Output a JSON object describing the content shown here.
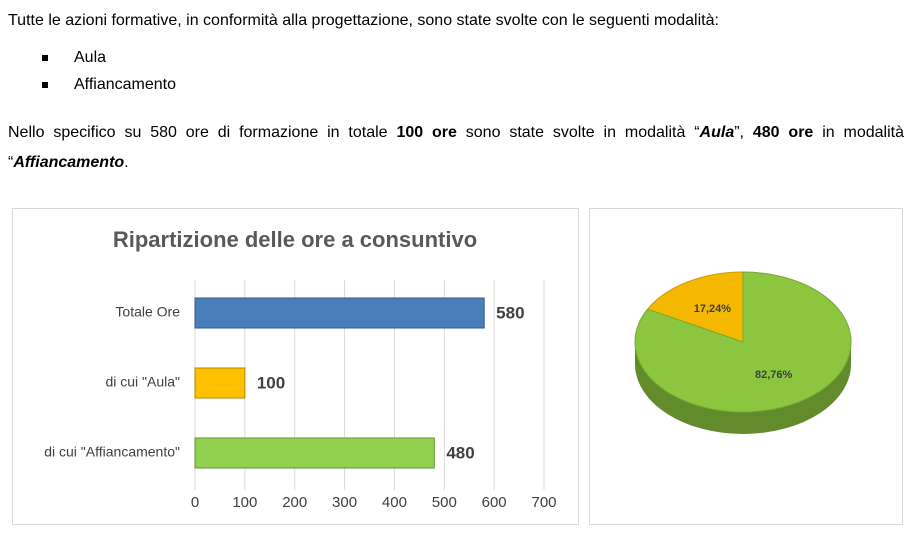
{
  "document": {
    "intro": "Tutte le azioni formative, in conformità alla progettazione, sono state svolte con le seguenti modalità:",
    "bullets": [
      "Aula",
      "Affiancamento"
    ],
    "paragraph": [
      {
        "text": "Nello specifico su 580 ore di formazione in totale ",
        "bold": false,
        "italic": false
      },
      {
        "text": "100 ore",
        "bold": true,
        "italic": false
      },
      {
        "text": " sono state svolte in modalità “",
        "bold": false,
        "italic": false
      },
      {
        "text": "Aula",
        "bold": true,
        "italic": true
      },
      {
        "text": "”, ",
        "bold": false,
        "italic": false
      },
      {
        "text": "480 ore",
        "bold": true,
        "italic": false
      },
      {
        "text": " in modalità “",
        "bold": false,
        "italic": false
      },
      {
        "text": "Affiancamento",
        "bold": true,
        "italic": true
      },
      {
        "text": ".",
        "bold": false,
        "italic": false
      }
    ]
  },
  "chart_data": [
    {
      "type": "hbar",
      "title": "Ripartizione delle ore a consuntivo",
      "categories": [
        "Totale Ore",
        "di cui \"Aula\"",
        "di cui \"Affiancamento\""
      ],
      "values": [
        580,
        100,
        480
      ],
      "colors": [
        "#4a7ebb",
        "#ffc000",
        "#92d050"
      ],
      "xlim": [
        0,
        700
      ],
      "xticks": [
        0,
        100,
        200,
        300,
        400,
        500,
        600,
        700
      ],
      "grid": true
    },
    {
      "type": "pie",
      "values": [
        17.24,
        82.76
      ],
      "value_labels": [
        "17,24%",
        "82,76%"
      ],
      "colors": [
        "#f5b800",
        "#8cc63f"
      ]
    }
  ]
}
